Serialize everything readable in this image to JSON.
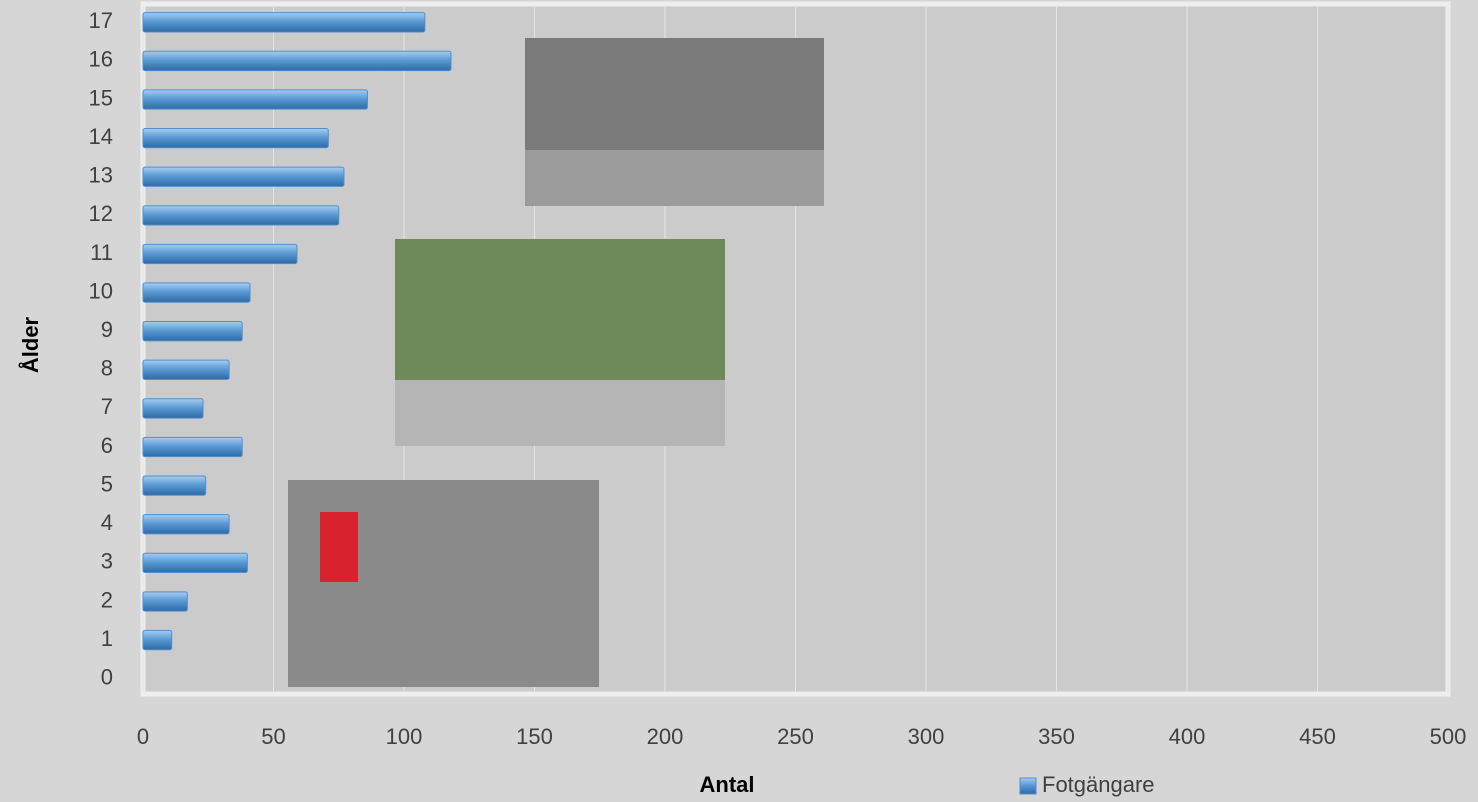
{
  "chart_data": {
    "type": "hbar",
    "x_label": "Antal",
    "y_label": "Ålder",
    "categories": [
      "0",
      "1",
      "2",
      "3",
      "4",
      "5",
      "6",
      "7",
      "8",
      "9",
      "10",
      "11",
      "12",
      "13",
      "14",
      "15",
      "16",
      "17"
    ],
    "series": [
      {
        "name": "Fotgängare",
        "color": "#4f8fcf",
        "values": [
          0,
          11,
          17,
          40,
          33,
          24,
          38,
          23,
          33,
          38,
          41,
          59,
          75,
          77,
          71,
          86,
          118,
          108
        ]
      }
    ],
    "xlim": [
      0,
      500
    ],
    "xticks": [
      0,
      50,
      100,
      150,
      200,
      250,
      300,
      350,
      400,
      450,
      500
    ],
    "grid": true
  }
}
